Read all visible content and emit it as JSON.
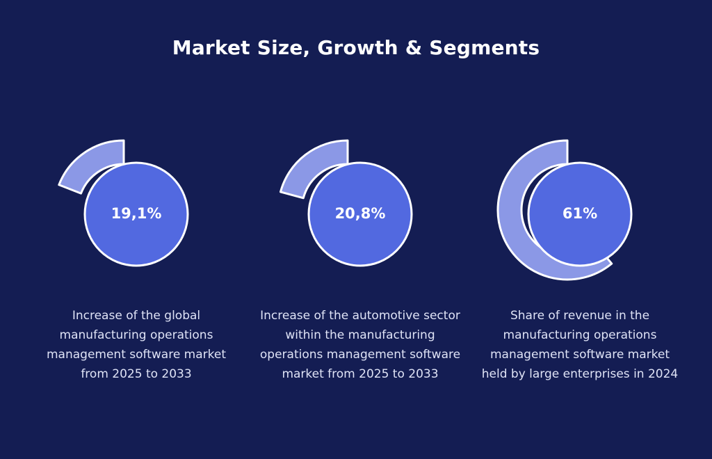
{
  "title": "Market Size, Growth & Segments",
  "colors": {
    "background": "#141d53",
    "disc": "#5269e0",
    "arc": "#8b98e6",
    "outline": "#ffffff"
  },
  "chart_data": {
    "type": "pie",
    "title": "Market Size, Growth & Segments",
    "items": [
      {
        "label": "19,1%",
        "value": 19.1,
        "description": "Increase of the global manufacturing operations management software market from 2025 to 2033"
      },
      {
        "label": "20,8%",
        "value": 20.8,
        "description": "Increase of the automotive sector within the manufacturing operations management software market from 2025 to 2033"
      },
      {
        "label": "61%",
        "value": 61,
        "description": "Share of revenue in the manufacturing operations management software market held by large enterprises in 2024"
      }
    ]
  }
}
